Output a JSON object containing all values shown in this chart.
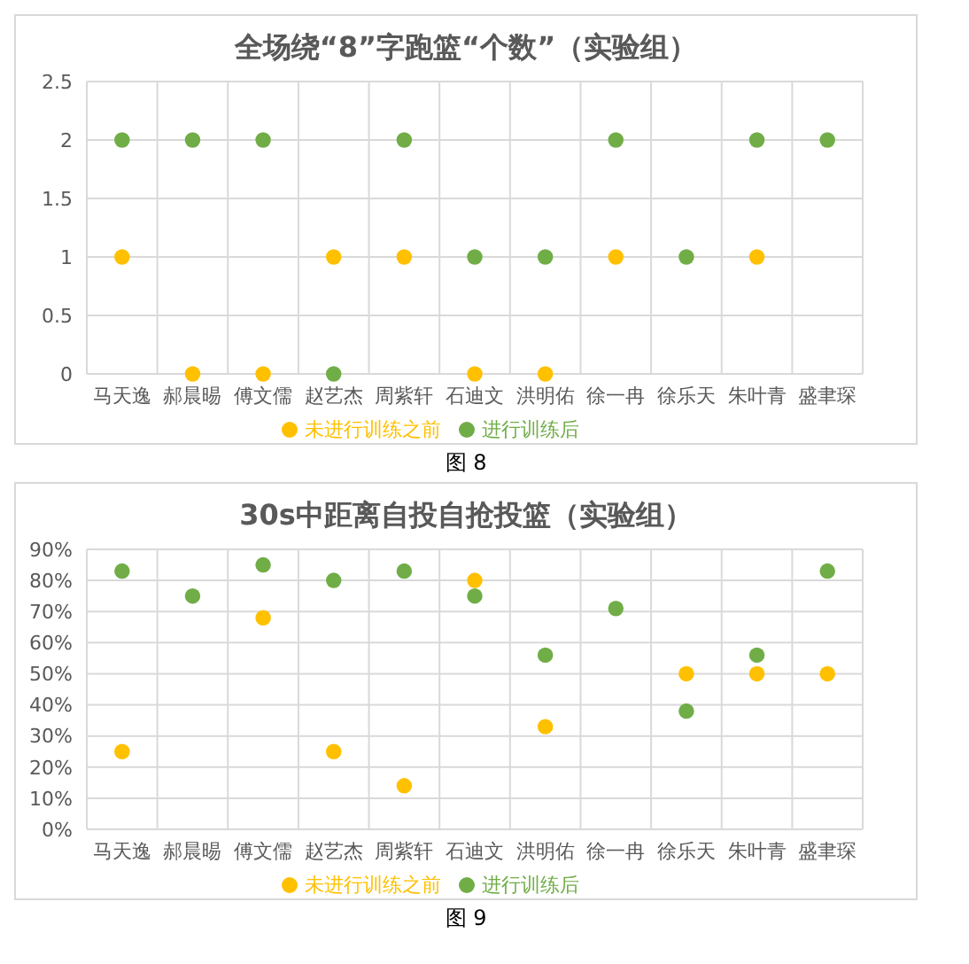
{
  "chart_data": [
    {
      "type": "scatter",
      "title": "全场绕“8”字跑篮“个数”（实验组）",
      "categories": [
        "马天逸",
        "郝晨晹",
        "傅文儒",
        "赵艺杰",
        "周紫轩",
        "石迪文",
        "洪明佑",
        "徐一冉",
        "徐乐天",
        "朱叶青",
        "盛聿琛"
      ],
      "series": [
        {
          "name": "未进行训练之前",
          "color": "#ffc000",
          "values": [
            1,
            0,
            0,
            1,
            1,
            0,
            0,
            1,
            null,
            1,
            null
          ]
        },
        {
          "name": "进行训练后",
          "color": "#70ad47",
          "values": [
            2,
            2,
            2,
            0,
            2,
            1,
            1,
            2,
            1,
            2,
            2
          ]
        }
      ],
      "ylim": [
        0,
        2.5
      ],
      "yticks": [
        0,
        0.5,
        1,
        1.5,
        2,
        2.5
      ],
      "grid": true,
      "legend": "bottom",
      "marker": "circle",
      "annotations": [
        "图 8"
      ]
    },
    {
      "type": "scatter",
      "title": "30s中距离自投自抢投篮（实验组）",
      "categories": [
        "马天逸",
        "郝晨晹",
        "傅文儒",
        "赵艺杰",
        "周紫轩",
        "石迪文",
        "洪明佑",
        "徐一冉",
        "徐乐天",
        "朱叶青",
        "盛聿琛"
      ],
      "series": [
        {
          "name": "未进行训练之前",
          "color": "#ffc000",
          "values": [
            25,
            null,
            68,
            25,
            14,
            80,
            33,
            null,
            50,
            50,
            50
          ]
        },
        {
          "name": "进行训练后",
          "color": "#70ad47",
          "values": [
            83,
            75,
            85,
            80,
            83,
            75,
            56,
            71,
            38,
            56,
            83
          ]
        }
      ],
      "ylim": [
        0,
        90
      ],
      "yticks": [
        {
          "value": 0,
          "label": "0%"
        },
        {
          "value": 10,
          "label": "10%"
        },
        {
          "value": 20,
          "label": "20%"
        },
        {
          "value": 30,
          "label": "30%"
        },
        {
          "value": 40,
          "label": "40%"
        },
        {
          "value": 50,
          "label": "50%"
        },
        {
          "value": 60,
          "label": "60%"
        },
        {
          "value": 70,
          "label": "70%"
        },
        {
          "value": 80,
          "label": "80%"
        },
        {
          "value": 90,
          "label": "90%"
        }
      ],
      "grid": true,
      "legend": "bottom",
      "marker": "circle",
      "annotations": [
        "图 9"
      ]
    }
  ]
}
